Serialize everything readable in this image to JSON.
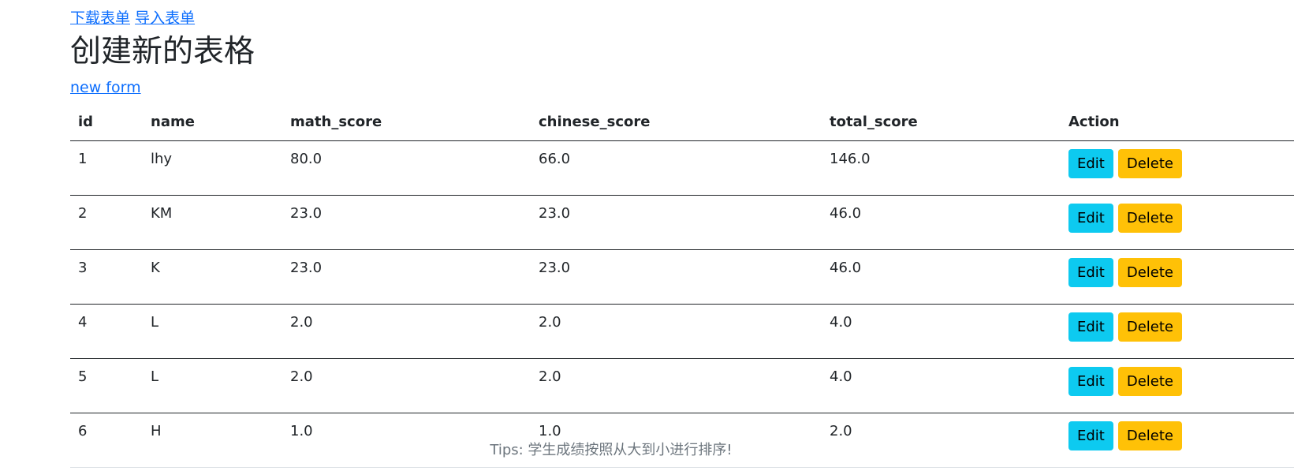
{
  "top_links": {
    "download": "下载表单",
    "import": "导入表单"
  },
  "page_title": "创建新的表格",
  "new_form_link": "new form",
  "table": {
    "headers": [
      "id",
      "name",
      "math_score",
      "chinese_score",
      "total_score",
      "Action"
    ],
    "rows": [
      {
        "id": "1",
        "name": "lhy",
        "math_score": "80.0",
        "chinese_score": "66.0",
        "total_score": "146.0"
      },
      {
        "id": "2",
        "name": "KM",
        "math_score": "23.0",
        "chinese_score": "23.0",
        "total_score": "46.0"
      },
      {
        "id": "3",
        "name": "K",
        "math_score": "23.0",
        "chinese_score": "23.0",
        "total_score": "46.0"
      },
      {
        "id": "4",
        "name": "L",
        "math_score": "2.0",
        "chinese_score": "2.0",
        "total_score": "4.0"
      },
      {
        "id": "5",
        "name": "L",
        "math_score": "2.0",
        "chinese_score": "2.0",
        "total_score": "4.0"
      },
      {
        "id": "6",
        "name": "H",
        "math_score": "1.0",
        "chinese_score": "1.0",
        "total_score": "2.0"
      }
    ],
    "edit_label": "Edit",
    "delete_label": "Delete"
  },
  "tips": "Tips: 学生成绩按照从大到小进行排序!",
  "colors": {
    "link": "#0d6efd",
    "edit_button": "#0dcaf0",
    "delete_button": "#ffc107",
    "text": "#212529",
    "muted": "#6c757d"
  }
}
